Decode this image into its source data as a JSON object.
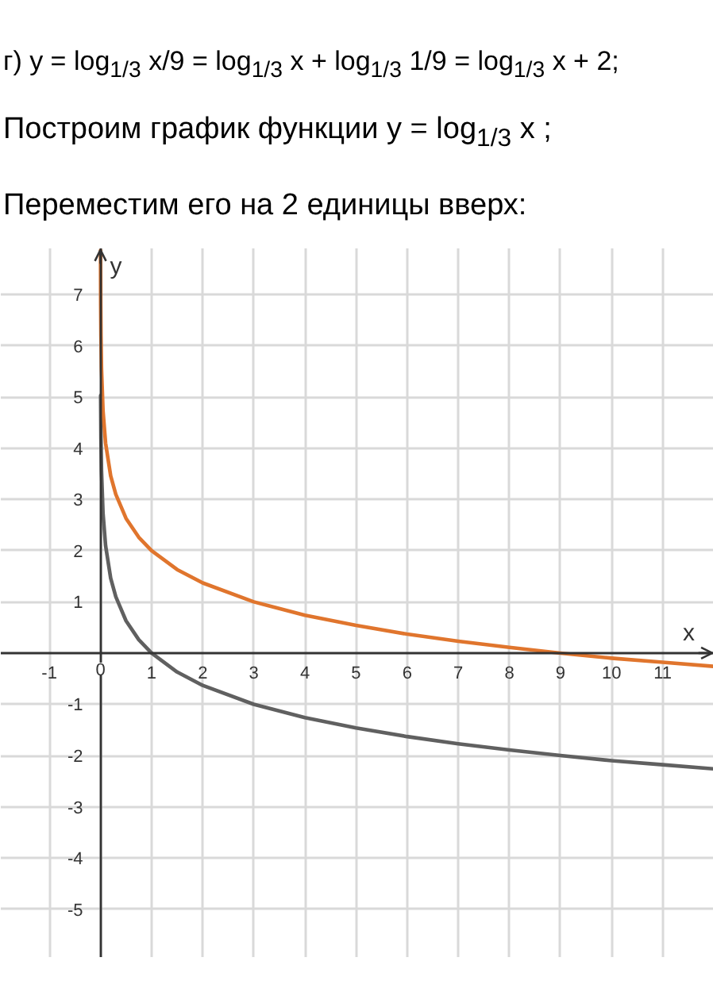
{
  "chart_data": {
    "type": "line",
    "title": "г) y = log$_{1/3}$ x/9 = log$_{1/3}$ x + log$_{1/3}$ 1/9 = log$_{1/3}$ x + 2;",
    "subtitle": "Построим график функции y = log$_{1/3}$ x ;",
    "annotations": [
      "Переместим его на 2 единицы вверх:"
    ],
    "xlabel": "x",
    "ylabel": "y",
    "xlim": [
      -1.95,
      12
    ],
    "ylim": [
      -5.95,
      7.9
    ],
    "xticks": [
      -1,
      0,
      1,
      2,
      3,
      4,
      5,
      6,
      7,
      8,
      9,
      10,
      11
    ],
    "yticks": [
      -5,
      -4,
      -3,
      -2,
      -1,
      1,
      2,
      3,
      4,
      5,
      6,
      7
    ],
    "grid": true,
    "series": [
      {
        "color": "#606060",
        "x": [
          0.004,
          0.01,
          0.02,
          0.05,
          0.1,
          0.2,
          0.3,
          0.5,
          0.75,
          1,
          1.5,
          2,
          3,
          4,
          5,
          6,
          7,
          8,
          9,
          10,
          11,
          12
        ],
        "values": [
          5.03,
          4.19,
          3.56,
          2.73,
          2.1,
          1.46,
          1.1,
          0.63,
          0.26,
          0,
          -0.37,
          -0.63,
          -1,
          -1.26,
          -1.46,
          -1.63,
          -1.77,
          -1.89,
          -2,
          -2.1,
          -2.18,
          -2.26
        ]
      },
      {
        "color": "#e0752d",
        "x": [
          0.0016,
          0.005,
          0.01,
          0.02,
          0.05,
          0.1,
          0.2,
          0.3,
          0.5,
          0.75,
          1,
          1.5,
          2,
          3,
          4,
          5,
          6,
          7,
          8,
          9,
          10,
          11,
          12
        ],
        "values": [
          7.86,
          6.82,
          6.19,
          5.56,
          4.73,
          4.1,
          3.46,
          3.1,
          2.63,
          2.26,
          2,
          1.63,
          1.37,
          1,
          0.74,
          0.54,
          0.37,
          0.23,
          0.11,
          0,
          -0.1,
          -0.18,
          -0.26
        ]
      }
    ]
  }
}
